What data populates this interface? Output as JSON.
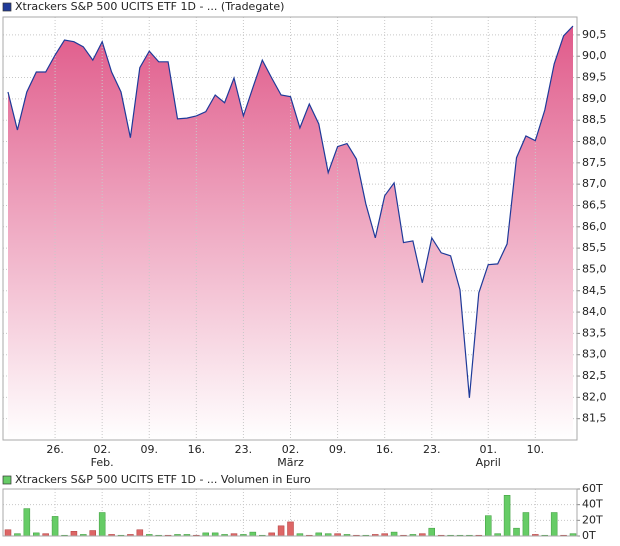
{
  "chart_data": [
    {
      "type": "area",
      "series": [
        {
          "name": "Xtrackers S&P 500 UCITS ETF 1D - ... (Tradegate)",
          "color": "#1f3a99",
          "values": [
            89.16,
            88.27,
            89.16,
            89.63,
            89.63,
            90.03,
            90.38,
            90.34,
            90.22,
            89.91,
            90.34,
            89.63,
            89.16,
            88.09,
            89.73,
            90.12,
            89.87,
            89.87,
            88.53,
            88.55,
            88.6,
            88.7,
            89.09,
            88.91,
            89.49,
            88.6,
            89.26,
            89.91,
            89.49,
            89.09,
            89.05,
            88.32,
            88.88,
            88.41,
            87.27,
            87.88,
            87.95,
            87.59,
            86.54,
            85.74,
            86.73,
            87.03,
            85.63,
            85.67,
            84.69,
            85.74,
            85.39,
            85.32,
            84.52,
            81.99,
            84.45,
            85.11,
            85.13,
            85.6,
            87.62,
            88.13,
            88.02,
            88.74,
            89.82,
            90.48,
            90.71
          ]
        }
      ],
      "categories": [
        null,
        null,
        null,
        null,
        null,
        "26.",
        null,
        null,
        null,
        null,
        "02.",
        null,
        null,
        null,
        null,
        "09.",
        null,
        null,
        null,
        null,
        "16.",
        null,
        null,
        null,
        null,
        "23.",
        null,
        null,
        null,
        null,
        "02.",
        null,
        null,
        null,
        null,
        "09.",
        null,
        null,
        null,
        null,
        "16.",
        null,
        null,
        null,
        null,
        "23.",
        null,
        null,
        null,
        null,
        null,
        "01.",
        null,
        null,
        null,
        null,
        "10.",
        null,
        null,
        null,
        null
      ],
      "category_months": [
        null,
        null,
        null,
        null,
        null,
        null,
        null,
        null,
        null,
        null,
        "Feb.",
        null,
        null,
        null,
        null,
        null,
        null,
        null,
        null,
        null,
        null,
        null,
        null,
        null,
        null,
        null,
        null,
        null,
        null,
        null,
        "März",
        null,
        null,
        null,
        null,
        null,
        null,
        null,
        null,
        null,
        null,
        null,
        null,
        null,
        null,
        null,
        null,
        null,
        null,
        null,
        null,
        "April",
        null,
        null,
        null,
        null,
        null,
        null,
        null,
        null,
        null
      ],
      "ylim": [
        81.0,
        90.92
      ],
      "yticks": [
        {
          "value": 81.5,
          "label": "81,5"
        },
        {
          "value": 82.0,
          "label": "82,0"
        },
        {
          "value": 82.5,
          "label": "82,5"
        },
        {
          "value": 83.0,
          "label": "83,0"
        },
        {
          "value": 83.5,
          "label": "83,5"
        },
        {
          "value": 84.0,
          "label": "84,0"
        },
        {
          "value": 84.5,
          "label": "84,5"
        },
        {
          "value": 85.0,
          "label": "85,0"
        },
        {
          "value": 85.5,
          "label": "85,5"
        },
        {
          "value": 86.0,
          "label": "86,0"
        },
        {
          "value": 86.5,
          "label": "86,5"
        },
        {
          "value": 87.0,
          "label": "87,0"
        },
        {
          "value": 87.5,
          "label": "87,5"
        },
        {
          "value": 88.0,
          "label": "88,0"
        },
        {
          "value": 88.5,
          "label": "88,5"
        },
        {
          "value": 89.0,
          "label": "89,0"
        },
        {
          "value": 89.5,
          "label": "89,5"
        },
        {
          "value": 90.0,
          "label": "90,0"
        },
        {
          "value": 90.5,
          "label": "90,5"
        }
      ],
      "grid": true
    },
    {
      "type": "bar",
      "series": [
        {
          "name": "Xtrackers S&P 500 UCITS ETF 1D - ... Volumen in Euro",
          "color": "#66cc66",
          "values": [
            8,
            3,
            35,
            4,
            3,
            25,
            1,
            6,
            2,
            7,
            30,
            2,
            1,
            2,
            8,
            2,
            1,
            1,
            2,
            2,
            1,
            4,
            4,
            2,
            3,
            2,
            5,
            1,
            4,
            13,
            18,
            3,
            1,
            4,
            3,
            3,
            2,
            1,
            1,
            2,
            3,
            5,
            1,
            2,
            3,
            10,
            1,
            1,
            1,
            1,
            1,
            26,
            3,
            52,
            10,
            30,
            2,
            1,
            30,
            1,
            3
          ],
          "colors": [
            "#dd6666",
            "#66cc66",
            "#66cc66",
            "#66cc66",
            "#dd6666",
            "#66cc66",
            "#66cc66",
            "#dd6666",
            "#66cc66",
            "#dd6666",
            "#66cc66",
            "#dd6666",
            "#66cc66",
            "#dd6666",
            "#dd6666",
            "#66cc66",
            "#66cc66",
            "#dd6666",
            "#66cc66",
            "#66cc66",
            "#dd6666",
            "#66cc66",
            "#66cc66",
            "#66cc66",
            "#dd6666",
            "#66cc66",
            "#66cc66",
            "#66cc66",
            "#dd6666",
            "#dd6666",
            "#dd6666",
            "#66cc66",
            "#dd6666",
            "#66cc66",
            "#66cc66",
            "#dd6666",
            "#66cc66",
            "#dd6666",
            "#66cc66",
            "#dd6666",
            "#dd6666",
            "#66cc66",
            "#dd6666",
            "#66cc66",
            "#dd6666",
            "#66cc66",
            "#dd6666",
            "#66cc66",
            "#66cc66",
            "#66cc66",
            "#dd6666",
            "#66cc66",
            "#66cc66",
            "#66cc66",
            "#66cc66",
            "#66cc66",
            "#dd6666",
            "#66cc66",
            "#66cc66",
            "#dd6666",
            "#66cc66"
          ]
        }
      ],
      "ylim": [
        0,
        60
      ],
      "yticks": [
        {
          "value": 0,
          "label": "0T"
        },
        {
          "value": 20,
          "label": "20T"
        },
        {
          "value": 40,
          "label": "40T"
        },
        {
          "value": 60,
          "label": "60T"
        }
      ],
      "grid": true
    }
  ]
}
